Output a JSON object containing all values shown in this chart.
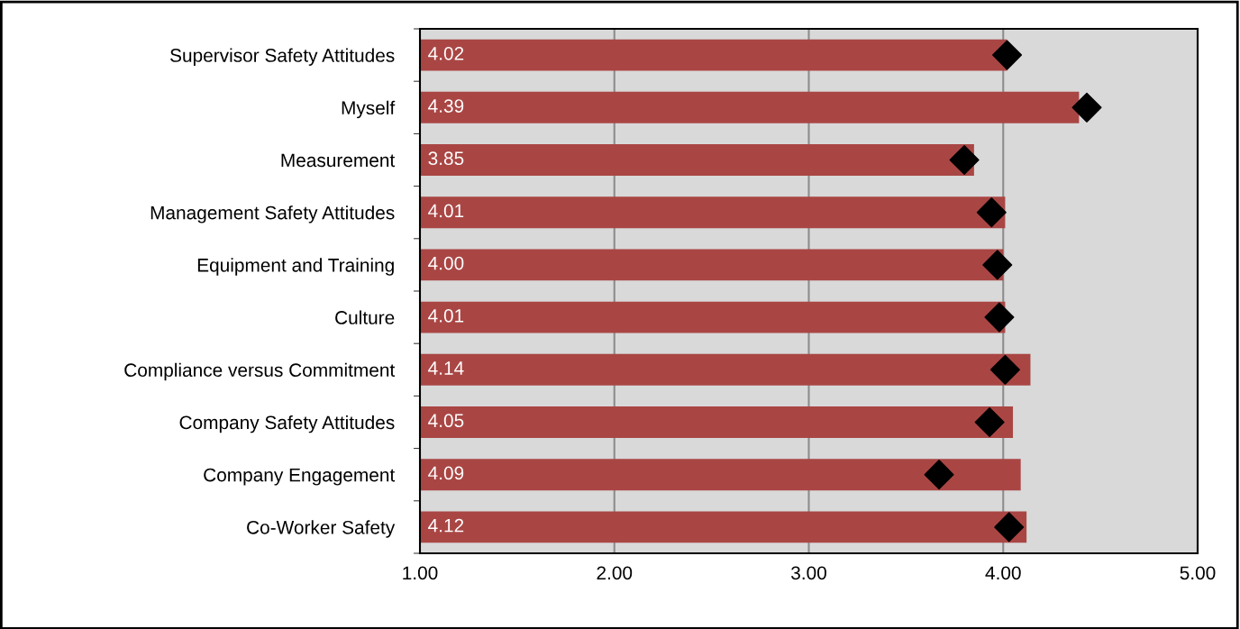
{
  "chart_data": {
    "type": "bar",
    "orientation": "horizontal",
    "categories": [
      "Supervisor Safety Attitudes",
      "Myself",
      "Measurement",
      "Management Safety Attitudes",
      "Equipment and Training",
      "Culture",
      "Compliance versus Commitment",
      "Company Safety Attitudes",
      "Company Engagement",
      "Co-Worker Safety"
    ],
    "series": [
      {
        "color": "#a94644",
        "values": [
          4.02,
          4.39,
          3.85,
          4.01,
          4.0,
          4.01,
          4.14,
          4.05,
          4.09,
          4.12
        ],
        "value_labels": [
          "4.02",
          "4.39",
          "3.85",
          "4.01",
          "4.00",
          "4.01",
          "4.14",
          "4.05",
          "4.09",
          "4.12"
        ]
      },
      {
        "type": "scatter",
        "color": "#000000",
        "marker": "diamond",
        "values": [
          4.02,
          4.43,
          3.8,
          3.94,
          3.97,
          3.98,
          4.01,
          3.93,
          3.67,
          4.03
        ]
      }
    ],
    "xlim": [
      1,
      5
    ],
    "xticks": [
      {
        "value": 1,
        "label": "1.00"
      },
      {
        "value": 2,
        "label": "2.00"
      },
      {
        "value": 3,
        "label": "3.00"
      },
      {
        "value": 4,
        "label": "4.00"
      },
      {
        "value": 5,
        "label": "5.00"
      }
    ],
    "grid": "x"
  }
}
